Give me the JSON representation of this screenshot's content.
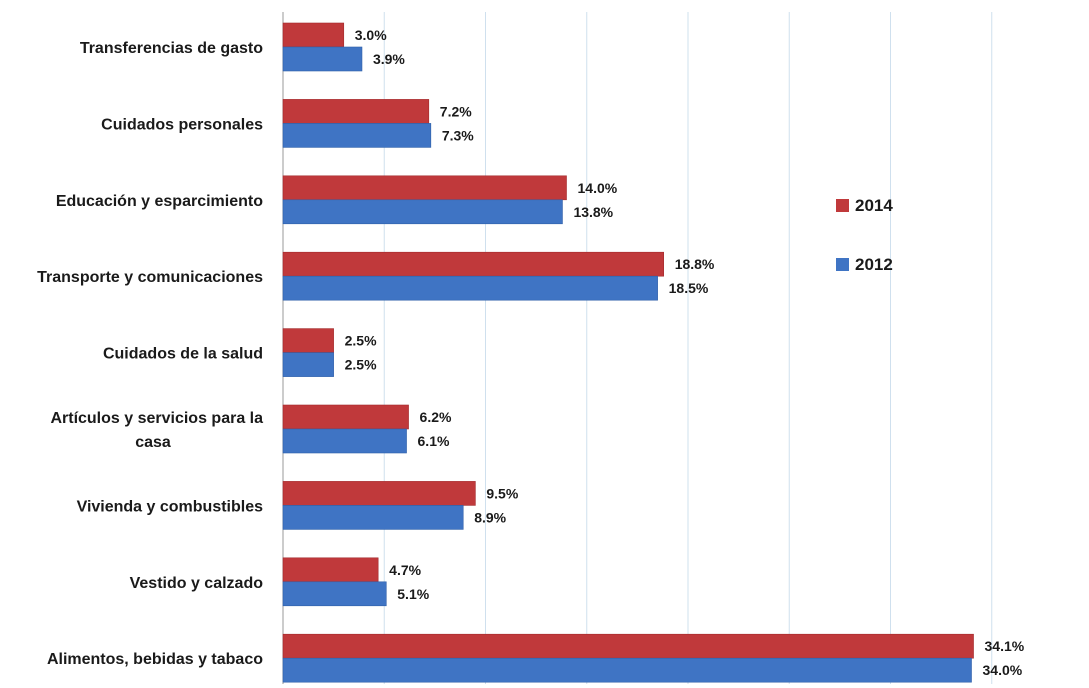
{
  "chart_data": {
    "type": "bar",
    "orientation": "horizontal",
    "categories": [
      [
        "Transferencias de gasto"
      ],
      [
        "Cuidados personales"
      ],
      [
        "Educación y esparcimiento"
      ],
      [
        "Transporte y comunicaciones"
      ],
      [
        "Cuidados de la salud"
      ],
      [
        "Artículos y servicios para la",
        "casa"
      ],
      [
        "Vivienda y combustibles"
      ],
      [
        "Vestido y calzado"
      ],
      [
        "Alimentos, bebidas y tabaco"
      ]
    ],
    "series": [
      {
        "name": "2014",
        "color": "#c0393b",
        "values": [
          3.0,
          7.2,
          14.0,
          18.8,
          2.5,
          6.2,
          9.5,
          4.7,
          34.1
        ],
        "labels": [
          "3.0%",
          "7.2%",
          "14.0%",
          "18.8%",
          "2.5%",
          "6.2%",
          "9.5%",
          "4.7%",
          "34.1%"
        ]
      },
      {
        "name": "2012",
        "color": "#3f74c4",
        "values": [
          3.9,
          7.3,
          13.8,
          18.5,
          2.5,
          6.1,
          8.9,
          5.1,
          34.0
        ],
        "labels": [
          "3.9%",
          "7.3%",
          "13.8%",
          "18.5%",
          "2.5%",
          "6.1%",
          "8.9%",
          "5.1%",
          "34.0%"
        ]
      }
    ],
    "xlim": [
      0,
      35
    ],
    "grid": true,
    "legend_position": "right"
  }
}
